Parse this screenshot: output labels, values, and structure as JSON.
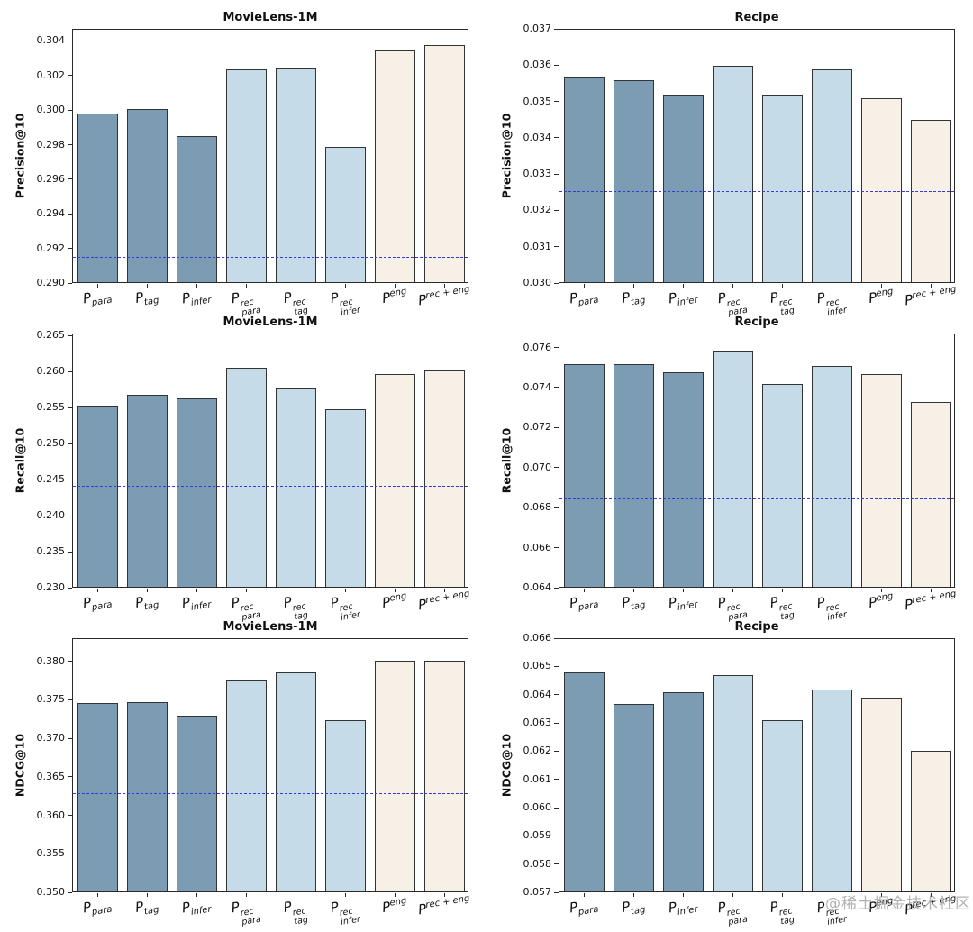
{
  "page": {
    "background": "#ffffff",
    "watermark": "@稀土掘金技术社区"
  },
  "style": {
    "bar_colors": [
      "#7B9CB3",
      "#7B9CB3",
      "#7B9CB3",
      "#C5DBE8",
      "#C5DBE8",
      "#C5DBE8",
      "#F6F0E7",
      "#F6F0E7"
    ],
    "bar_edge_color": "#333333",
    "baseline_color": "#3838D8",
    "axis_color": "#2A2A2A"
  },
  "categories": [
    {
      "base": "P",
      "sup": "",
      "sub": "para"
    },
    {
      "base": "P",
      "sup": "",
      "sub": "tag"
    },
    {
      "base": "P",
      "sup": "",
      "sub": "infer"
    },
    {
      "base": "P",
      "sup": "rec",
      "sub": "para"
    },
    {
      "base": "P",
      "sup": "rec",
      "sub": "tag"
    },
    {
      "base": "P",
      "sup": "rec",
      "sub": "infer"
    },
    {
      "base": "P",
      "sup": "eng",
      "sub": ""
    },
    {
      "base": "P",
      "sup": "rec + eng",
      "sub": ""
    }
  ],
  "chart_data": [
    {
      "id": "ml1m-precision",
      "type": "bar",
      "title": "MovieLens-1M",
      "ylabel": "Precision@10",
      "ylim": [
        0.29,
        0.3047
      ],
      "yticks": [
        0.29,
        0.292,
        0.294,
        0.296,
        0.298,
        0.3,
        0.302,
        0.304
      ],
      "values": [
        0.2998,
        0.3001,
        0.2985,
        0.3024,
        0.3025,
        0.2979,
        0.3035,
        0.3038
      ],
      "baseline": 0.2914,
      "grid": false,
      "legend": "none"
    },
    {
      "id": "recipe-precision",
      "type": "bar",
      "title": "Recipe",
      "ylabel": "Precision@10",
      "ylim": [
        0.03,
        0.037
      ],
      "yticks": [
        0.03,
        0.031,
        0.032,
        0.033,
        0.034,
        0.035,
        0.036,
        0.037
      ],
      "values": [
        0.0357,
        0.0356,
        0.0352,
        0.036,
        0.0352,
        0.0359,
        0.0351,
        0.0345
      ],
      "baseline": 0.0325,
      "grid": false,
      "legend": "none"
    },
    {
      "id": "ml1m-recall",
      "type": "bar",
      "title": "MovieLens-1M",
      "ylabel": "Recall@10",
      "ylim": [
        0.23,
        0.2653
      ],
      "yticks": [
        0.23,
        0.235,
        0.24,
        0.245,
        0.25,
        0.255,
        0.26,
        0.265
      ],
      "values": [
        0.2554,
        0.2569,
        0.2563,
        0.2606,
        0.2577,
        0.2548,
        0.2597,
        0.2603
      ],
      "baseline": 0.244,
      "grid": false,
      "legend": "none"
    },
    {
      "id": "recipe-recall",
      "type": "bar",
      "title": "Recipe",
      "ylabel": "Recall@10",
      "ylim": [
        0.064,
        0.0767
      ],
      "yticks": [
        0.064,
        0.066,
        0.068,
        0.07,
        0.072,
        0.074,
        0.076
      ],
      "values": [
        0.0752,
        0.0752,
        0.0748,
        0.0759,
        0.0742,
        0.0751,
        0.0747,
        0.0733
      ],
      "baseline": 0.0684,
      "grid": false,
      "legend": "none"
    },
    {
      "id": "ml1m-ndcg",
      "type": "bar",
      "title": "MovieLens-1M",
      "ylabel": "NDCG@10",
      "ylim": [
        0.35,
        0.383
      ],
      "yticks": [
        0.35,
        0.355,
        0.36,
        0.365,
        0.37,
        0.375,
        0.38
      ],
      "values": [
        0.3746,
        0.3747,
        0.373,
        0.3777,
        0.3786,
        0.3724,
        0.3802,
        0.3802
      ],
      "baseline": 0.3627,
      "grid": false,
      "legend": "none"
    },
    {
      "id": "recipe-ndcg",
      "type": "bar",
      "title": "Recipe",
      "ylabel": "NDCG@10",
      "ylim": [
        0.057,
        0.066
      ],
      "yticks": [
        0.057,
        0.058,
        0.059,
        0.06,
        0.061,
        0.062,
        0.063,
        0.064,
        0.065,
        0.066
      ],
      "values": [
        0.0648,
        0.0637,
        0.0641,
        0.0647,
        0.0631,
        0.0642,
        0.0639,
        0.062
      ],
      "baseline": 0.058,
      "grid": false,
      "legend": "none"
    }
  ]
}
